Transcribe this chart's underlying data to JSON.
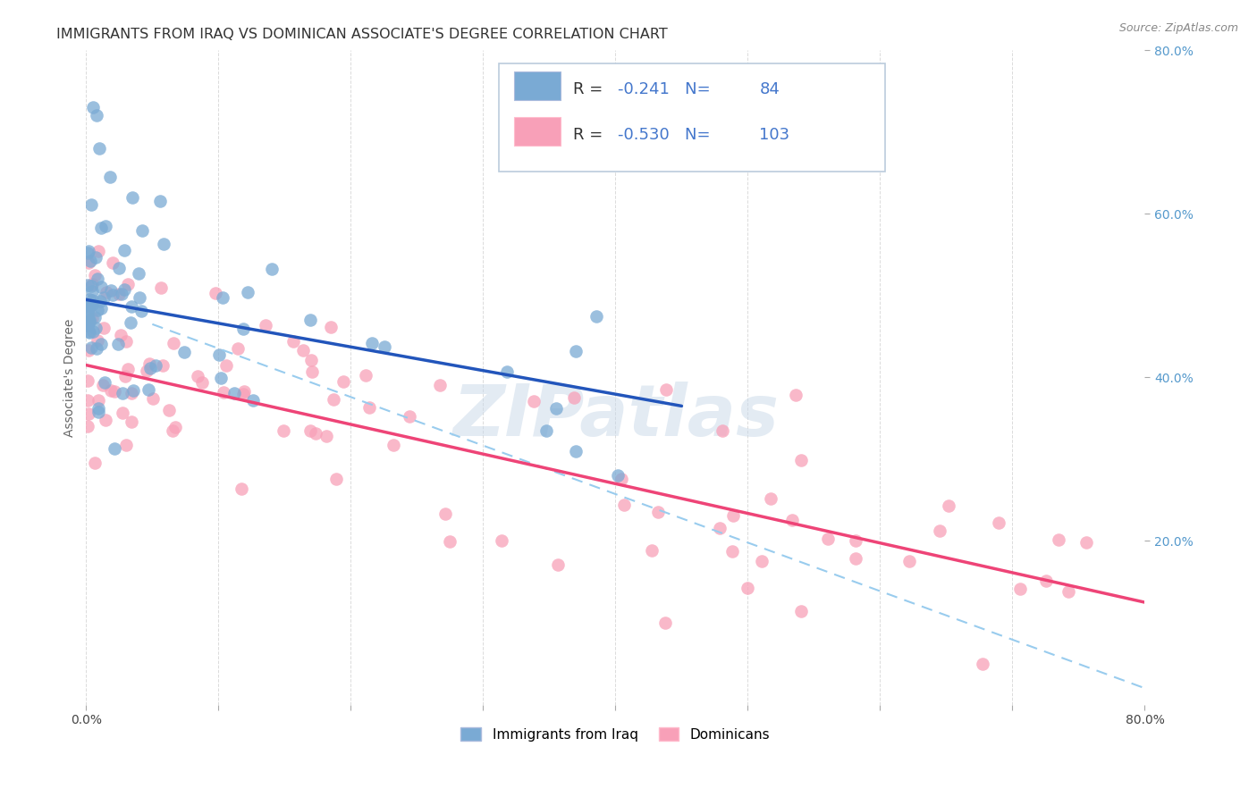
{
  "title": "IMMIGRANTS FROM IRAQ VS DOMINICAN ASSOCIATE'S DEGREE CORRELATION CHART",
  "source": "Source: ZipAtlas.com",
  "ylabel": "Associate's Degree",
  "xlim": [
    0.0,
    0.8
  ],
  "ylim": [
    0.0,
    0.8
  ],
  "legend_box": {
    "iraq_r": "-0.241",
    "iraq_n": "84",
    "dom_r": "-0.530",
    "dom_n": "103"
  },
  "iraq_color": "#7AAAD4",
  "dom_color": "#F8A0B8",
  "iraq_trend_color": "#2255BB",
  "dom_trend_color": "#EE4477",
  "dashed_color": "#99CCEE",
  "watermark": "ZIPatlas",
  "background_color": "#FFFFFF",
  "grid_color": "#CCCCCC",
  "title_fontsize": 11.5,
  "axis_label_fontsize": 10,
  "iraq_trend_x": [
    0.0,
    0.45
  ],
  "iraq_trend_y": [
    0.495,
    0.365
  ],
  "dom_trend_x": [
    0.0,
    0.8
  ],
  "dom_trend_y": [
    0.415,
    0.125
  ],
  "dash_trend_x": [
    0.05,
    0.8
  ],
  "dash_trend_y": [
    0.465,
    0.02
  ]
}
